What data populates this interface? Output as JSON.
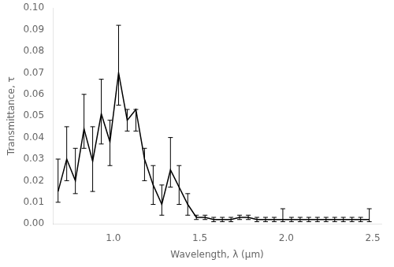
{
  "chart_data": {
    "type": "line",
    "xlabel": "Wavelength, λ (μm)",
    "ylabel": "Transmittance, τ",
    "x": [
      0.68,
      0.73,
      0.78,
      0.83,
      0.88,
      0.93,
      0.98,
      1.03,
      1.08,
      1.13,
      1.18,
      1.23,
      1.28,
      1.33,
      1.38,
      1.43,
      1.48,
      1.53,
      1.58,
      1.63,
      1.68,
      1.73,
      1.78,
      1.83,
      1.88,
      1.93,
      1.98,
      2.03,
      2.08,
      2.13,
      2.18,
      2.23,
      2.28,
      2.33,
      2.38,
      2.43,
      2.48
    ],
    "values": [
      0.015,
      0.03,
      0.02,
      0.044,
      0.029,
      0.051,
      0.038,
      0.07,
      0.048,
      0.053,
      0.03,
      0.018,
      0.009,
      0.025,
      0.017,
      0.009,
      0.003,
      0.003,
      0.002,
      0.002,
      0.002,
      0.003,
      0.003,
      0.002,
      0.002,
      0.002,
      0.002,
      0.002,
      0.002,
      0.002,
      0.002,
      0.002,
      0.002,
      0.002,
      0.002,
      0.002,
      0.002
    ],
    "yerr_lower": [
      0.005,
      0.01,
      0.006,
      0.009,
      0.014,
      0.014,
      0.011,
      0.015,
      0.005,
      0.01,
      0.01,
      0.009,
      0.005,
      0.008,
      0.008,
      0.005,
      0.001,
      0.001,
      0.001,
      0.001,
      0.001,
      0.001,
      0.001,
      0.001,
      0.001,
      0.001,
      0.001,
      0.001,
      0.001,
      0.001,
      0.001,
      0.001,
      0.001,
      0.001,
      0.001,
      0.001,
      0.001
    ],
    "yerr_upper": [
      0.015,
      0.015,
      0.015,
      0.016,
      0.016,
      0.016,
      0.01,
      0.022,
      0.005,
      0.0,
      0.005,
      0.009,
      0.009,
      0.015,
      0.01,
      0.005,
      0.001,
      0.001,
      0.001,
      0.001,
      0.001,
      0.001,
      0.001,
      0.001,
      0.001,
      0.001,
      0.005,
      0.001,
      0.001,
      0.001,
      0.001,
      0.001,
      0.001,
      0.001,
      0.001,
      0.001,
      0.005
    ],
    "color": "#000000",
    "marker": "none",
    "xlim": [
      0.65,
      2.55
    ],
    "ylim": [
      0.0,
      0.1
    ],
    "xticks": [
      {
        "value": 1.0,
        "label": "1.0"
      },
      1.5,
      {
        "value": 2.0,
        "label": "2.0"
      },
      2.5
    ],
    "yticks": [
      {
        "value": 0.0,
        "label": "0.00"
      },
      0.01,
      0.02,
      0.03,
      0.04,
      0.05,
      0.06,
      0.07,
      0.08,
      0.09,
      {
        "value": 0.1,
        "label": "0.10"
      }
    ],
    "grid": false
  }
}
